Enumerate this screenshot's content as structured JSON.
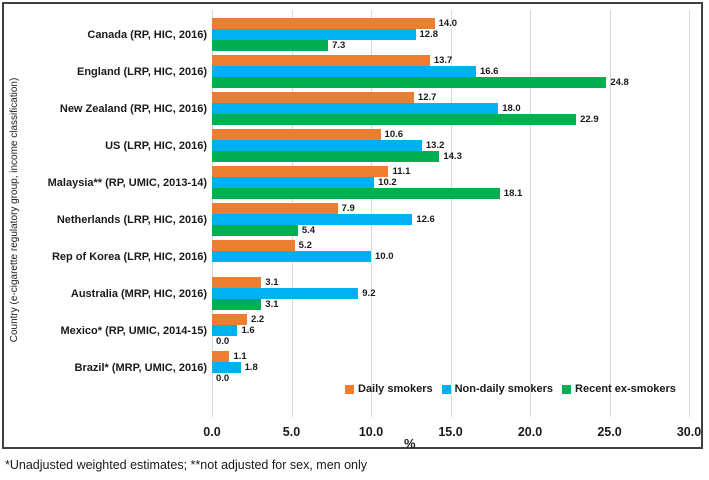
{
  "chart_data": {
    "type": "bar",
    "orientation": "horizontal",
    "title": "",
    "xlabel": "%",
    "ylabel": "Country (e-cigarette regulatory group, income classification)",
    "xlim": [
      0.0,
      30.0
    ],
    "xticks": [
      "0.0",
      "5.0",
      "10.0",
      "15.0",
      "20.0",
      "25.0",
      "30.0"
    ],
    "grid": "vertical-gridlines-on",
    "legend_position": "bottom-inside",
    "value_label_decimals": 1,
    "categories": [
      "Canada (RP, HIC, 2016)",
      "England (LRP, HIC, 2016)",
      "New Zealand (RP, HIC, 2016)",
      "US (LRP, HIC, 2016)",
      "Malaysia** (RP, UMIC, 2013-14)",
      "Netherlands (LRP, HIC, 2016)",
      "Rep of Korea (LRP, HIC, 2016)",
      "Australia (MRP, HIC, 2016)",
      "Mexico* (RP, UMIC, 2014-15)",
      "Brazil* (MRP, UMIC, 2016)"
    ],
    "series": [
      {
        "name": "Daily smokers",
        "color": "#ED7D31",
        "values": [
          14.0,
          13.7,
          12.7,
          10.6,
          11.1,
          7.9,
          5.2,
          3.1,
          2.2,
          1.1
        ]
      },
      {
        "name": "Non-daily smokers",
        "color": "#00B0F0",
        "values": [
          12.8,
          16.6,
          18.0,
          13.2,
          10.2,
          12.6,
          10.0,
          9.2,
          1.6,
          1.8
        ]
      },
      {
        "name": "Recent ex-smokers",
        "color": "#00B050",
        "values": [
          7.3,
          24.8,
          22.9,
          14.3,
          18.1,
          5.4,
          null,
          3.1,
          0.0,
          0.0
        ]
      }
    ]
  },
  "footnote": "*Unadjusted weighted estimates; **not adjusted for sex, men only",
  "style_colors": {
    "frame_border": "#404040",
    "gridline": "#d9d9d9",
    "text": "#1a1a1a"
  }
}
